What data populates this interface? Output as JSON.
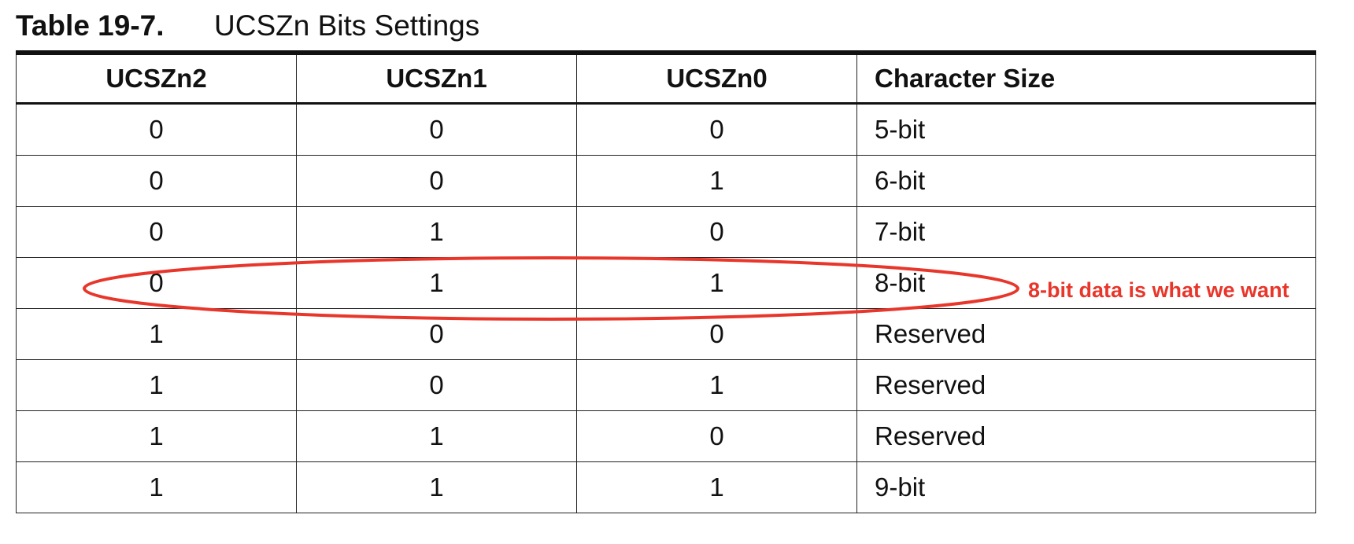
{
  "caption": {
    "number": "Table 19-7.",
    "title": "UCSZn Bits Settings"
  },
  "table": {
    "headers": [
      "UCSZn2",
      "UCSZn1",
      "UCSZn0",
      "Character Size"
    ],
    "rows": [
      [
        "0",
        "0",
        "0",
        "5-bit"
      ],
      [
        "0",
        "0",
        "1",
        "6-bit"
      ],
      [
        "0",
        "1",
        "0",
        "7-bit"
      ],
      [
        "0",
        "1",
        "1",
        "8-bit"
      ],
      [
        "1",
        "0",
        "0",
        "Reserved"
      ],
      [
        "1",
        "0",
        "1",
        "Reserved"
      ],
      [
        "1",
        "1",
        "0",
        "Reserved"
      ],
      [
        "1",
        "1",
        "1",
        "9-bit"
      ]
    ],
    "highlighted_row": 3
  },
  "annotation": {
    "text": "8-bit data is what we want",
    "color": "#e8362b"
  }
}
